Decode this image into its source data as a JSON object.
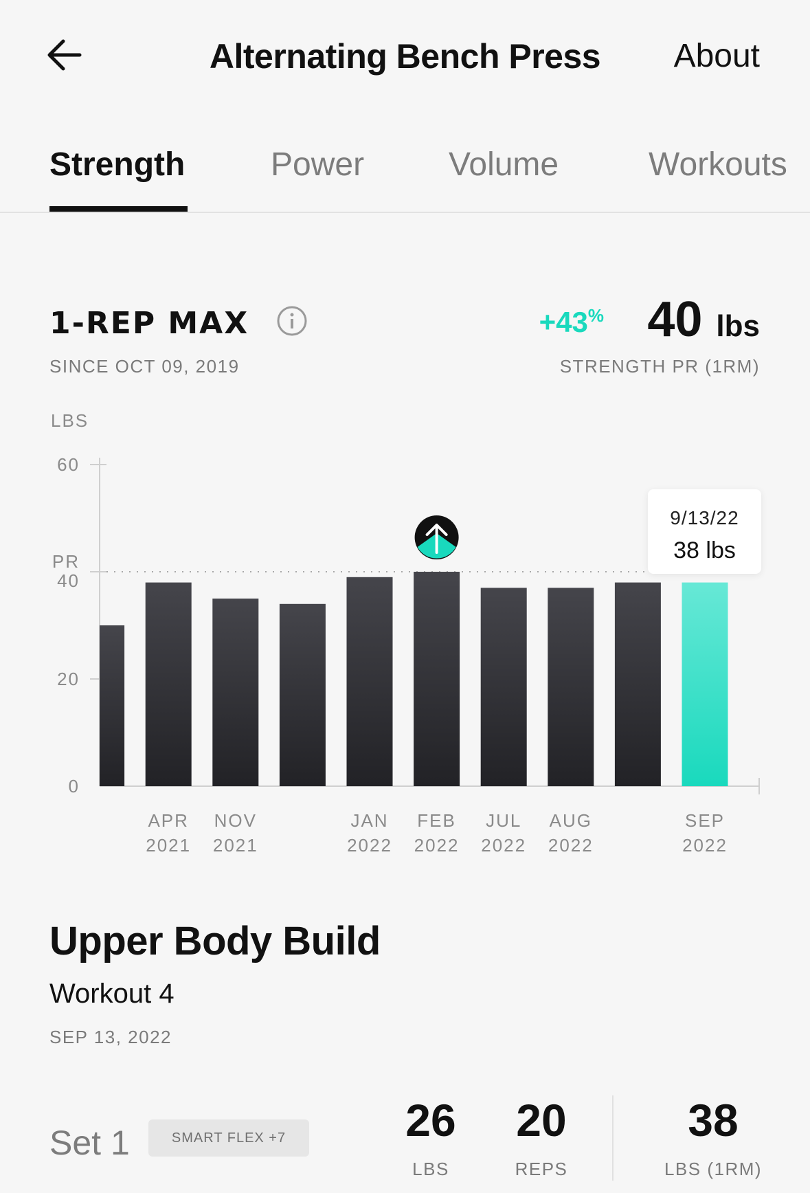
{
  "header": {
    "title": "Alternating Bench Press",
    "about_label": "About"
  },
  "tabs": [
    {
      "label": "Strength",
      "active": true
    },
    {
      "label": "Power"
    },
    {
      "label": "Volume"
    },
    {
      "label": "Workouts"
    }
  ],
  "metric": {
    "label": "1-REP MAX",
    "since": "SINCE OCT 09, 2019",
    "change_percent": "+43",
    "change_symbol": "%",
    "pr_value": "40",
    "pr_unit": "lbs",
    "pr_label": "STRENGTH PR (1RM)"
  },
  "chart_data": {
    "type": "bar",
    "ylabel": "LBS",
    "ylim": [
      0,
      60
    ],
    "yticks": [
      "0",
      "20",
      "40",
      "60"
    ],
    "pr_line": {
      "label": "PR",
      "value": 40
    },
    "bars": [
      {
        "value": 30,
        "label": ""
      },
      {
        "value": 38,
        "label": "APR 2021"
      },
      {
        "value": 35,
        "label": "NOV 2021"
      },
      {
        "value": 34,
        "label": ""
      },
      {
        "value": 39,
        "label": "JAN 2022"
      },
      {
        "value": 40,
        "label": "FEB 2022",
        "pr": true
      },
      {
        "value": 37,
        "label": "JUL 2022"
      },
      {
        "value": 37,
        "label": "AUG 2022"
      },
      {
        "value": 38,
        "label": ""
      },
      {
        "value": 38,
        "label": "SEP 2022",
        "selected": true
      }
    ],
    "colors": {
      "bar": "#2f2f33",
      "selected": "#19d9bd"
    }
  },
  "tooltip": {
    "date": "9/13/22",
    "value": "38 lbs"
  },
  "workout": {
    "title": "Upper Body Build",
    "subtitle": "Workout 4",
    "date": "SEP 13, 2022",
    "set": {
      "label": "Set 1",
      "badge": "SMART FLEX +7",
      "weight": "26",
      "weight_label": "LBS",
      "reps": "20",
      "reps_label": "REPS",
      "onerm": "38",
      "onerm_label": "LBS (1RM)"
    }
  }
}
